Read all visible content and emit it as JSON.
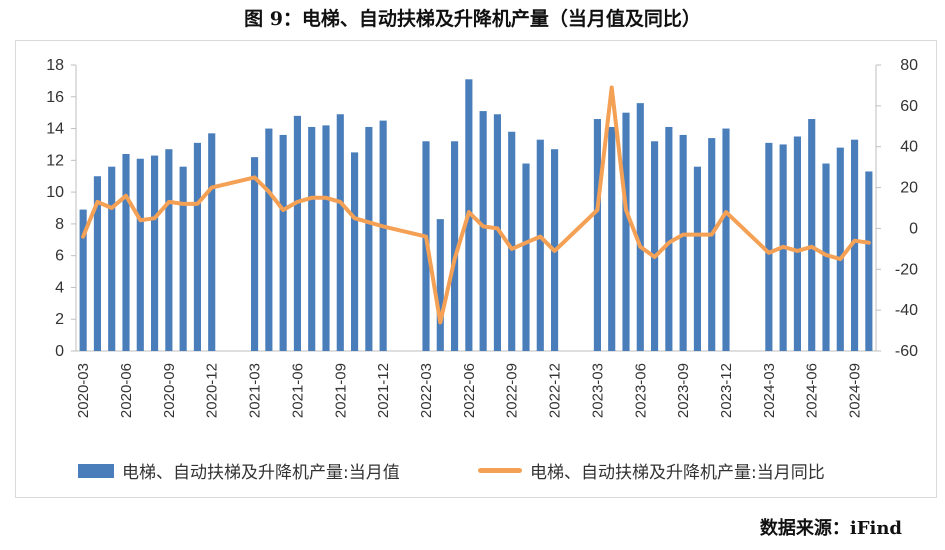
{
  "title": "图 9：电梯、自动扶梯及升降机产量（当月值及同比）",
  "source": "数据来源：iFind",
  "colors": {
    "bar": "#4a7ebb",
    "line": "#f4a055",
    "axis": "#bfbfbf"
  },
  "chart_data": {
    "type": "bar+line",
    "categories": [
      "2020-03",
      "2020-04",
      "2020-05",
      "2020-06",
      "2020-07",
      "2020-08",
      "2020-09",
      "2020-10",
      "2020-11",
      "2020-12",
      "2021-01",
      "2021-02",
      "2021-03",
      "2021-04",
      "2021-05",
      "2021-06",
      "2021-07",
      "2021-08",
      "2021-09",
      "2021-10",
      "2021-11",
      "2021-12",
      "2022-01",
      "2022-02",
      "2022-03",
      "2022-04",
      "2022-05",
      "2022-06",
      "2022-07",
      "2022-08",
      "2022-09",
      "2022-10",
      "2022-11",
      "2022-12",
      "2023-01",
      "2023-02",
      "2023-03",
      "2023-04",
      "2023-05",
      "2023-06",
      "2023-07",
      "2023-08",
      "2023-09",
      "2023-10",
      "2023-11",
      "2023-12",
      "2024-01",
      "2024-02",
      "2024-03",
      "2024-04",
      "2024-05",
      "2024-06",
      "2024-07",
      "2024-08",
      "2024-09",
      "2024-10"
    ],
    "x_tick_labels": [
      "2020-03",
      "2020-06",
      "2020-09",
      "2020-12",
      "2021-03",
      "2021-06",
      "2021-09",
      "2021-12",
      "2022-03",
      "2022-06",
      "2022-09",
      "2022-12",
      "2023-03",
      "2023-06",
      "2023-09",
      "2023-12",
      "2024-03",
      "2024-06",
      "2024-09"
    ],
    "y_left": {
      "ylim": [
        0,
        18
      ],
      "ticks": [
        "0",
        "2",
        "4",
        "6",
        "8",
        "10",
        "12",
        "14",
        "16",
        "18"
      ]
    },
    "y_right": {
      "ylim": [
        -60,
        80
      ],
      "ticks": [
        "-60",
        "-40",
        "-20",
        "0",
        "20",
        "40",
        "60",
        "80"
      ]
    },
    "series": [
      {
        "name": "电梯、自动扶梯及升降机产量:当月值",
        "type": "bar",
        "axis": "left",
        "values": [
          8.9,
          11.0,
          11.6,
          12.4,
          12.1,
          12.3,
          12.7,
          11.6,
          13.1,
          13.7,
          null,
          null,
          12.2,
          14.0,
          13.6,
          14.8,
          14.1,
          14.2,
          14.9,
          12.5,
          14.1,
          14.5,
          null,
          null,
          13.2,
          8.3,
          13.2,
          17.1,
          15.1,
          14.9,
          13.8,
          11.8,
          13.3,
          12.7,
          null,
          null,
          14.6,
          14.1,
          15.0,
          15.6,
          13.2,
          14.1,
          13.6,
          11.6,
          13.4,
          14.0,
          null,
          null,
          13.1,
          13.0,
          13.5,
          14.6,
          11.8,
          12.8,
          13.3,
          11.3
        ]
      },
      {
        "name": "电梯、自动扶梯及升降机产量:当月同比",
        "type": "line",
        "axis": "right",
        "values": [
          -4,
          13,
          10,
          16,
          4,
          5,
          13,
          12,
          12,
          20,
          null,
          null,
          25,
          18,
          9,
          13,
          15,
          15,
          13,
          5,
          3,
          1,
          null,
          null,
          -4,
          -46,
          -15,
          8,
          1,
          0,
          -10,
          -7,
          -4,
          -11,
          null,
          null,
          9,
          69,
          9,
          -9,
          -14,
          -7,
          -3,
          -3,
          -3,
          8,
          null,
          null,
          -12,
          -9,
          -11,
          -9,
          -13,
          -15,
          -6,
          -7
        ]
      }
    ],
    "legend_placement": "bottom",
    "grid": false
  }
}
